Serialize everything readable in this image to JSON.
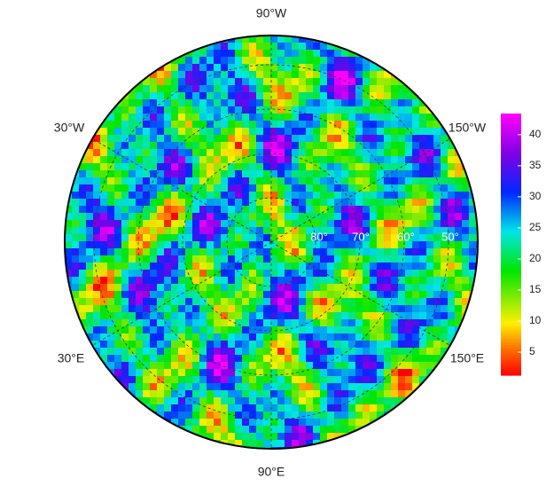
{
  "map": {
    "longitude_labels": [
      "90°W",
      "30°W",
      "150°W",
      "30°E",
      "150°E",
      "90°E"
    ],
    "latitude_labels": [
      "80°",
      "70°",
      "60°",
      "50°"
    ]
  },
  "colorbar": {
    "range": [
      1.3,
      43.4
    ],
    "ticks": [
      5,
      10,
      15,
      20,
      25,
      30,
      35,
      40
    ]
  }
}
